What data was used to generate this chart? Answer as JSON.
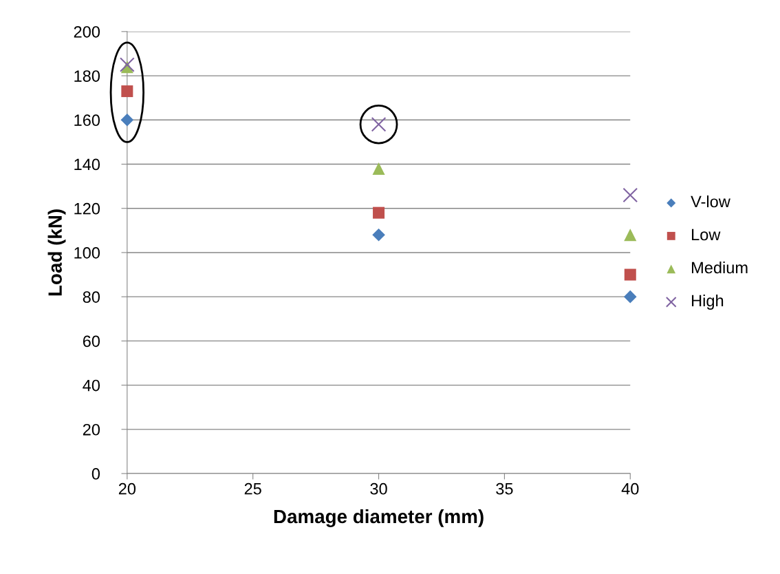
{
  "chart_data": {
    "type": "scatter",
    "xlabel": "Damage diameter (mm)",
    "ylabel": "Load (kN)",
    "x": [
      20,
      30,
      40
    ],
    "series": [
      {
        "name": "V-low",
        "color": "#4a7ebb",
        "marker": "diamond",
        "values": [
          160,
          108,
          80
        ]
      },
      {
        "name": "Low",
        "color": "#c0504d",
        "marker": "square",
        "values": [
          173,
          118,
          90
        ]
      },
      {
        "name": "Medium",
        "color": "#9bbb59",
        "marker": "triangle",
        "values": [
          184,
          138,
          108
        ]
      },
      {
        "name": "High",
        "color": "#8064a2",
        "marker": "cross",
        "values": [
          185,
          158,
          126
        ]
      }
    ],
    "xlim": [
      20,
      40
    ],
    "xticks": [
      20,
      25,
      30,
      35,
      40
    ],
    "ylim": [
      0,
      200
    ],
    "yticks": [
      0,
      20,
      40,
      60,
      80,
      100,
      120,
      140,
      160,
      180,
      200
    ],
    "grid": "y",
    "legend": "right"
  }
}
